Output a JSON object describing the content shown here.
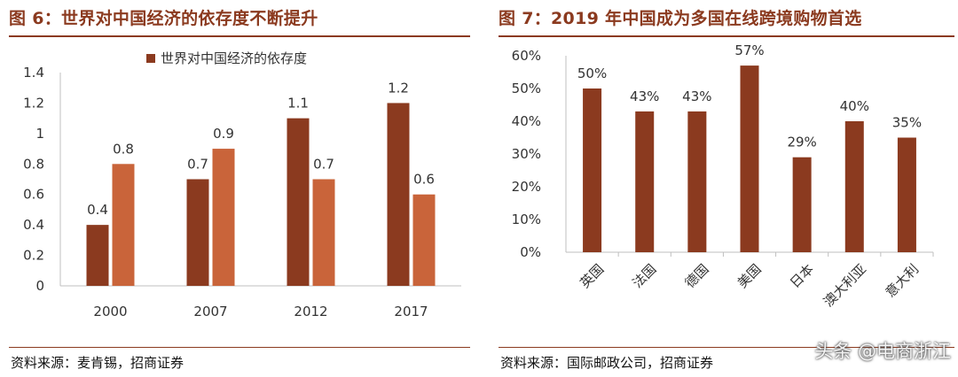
{
  "left": {
    "title": "图 6：世界对中国经济的依存度不断提升",
    "source": "资料来源：麦肯锡，招商证券"
  },
  "right": {
    "title": "图 7：2019 年中国成为多国在线跨境购物首选",
    "source": "资料来源：国际邮政公司，招商证券"
  },
  "watermark": "头条 @电商浙江",
  "colors": {
    "dark": "#8b3a1f",
    "light": "#c9643a",
    "axis": "#bfbfbf",
    "text": "#333333"
  },
  "chart_data": [
    {
      "type": "bar",
      "title": "",
      "categories": [
        "2000",
        "2007",
        "2012",
        "2017"
      ],
      "series": [
        {
          "name": "世界对中国经济的依存度",
          "values": [
            0.4,
            0.7,
            1.1,
            1.2
          ],
          "color": "#8b3a1f"
        },
        {
          "name": "",
          "values": [
            0.8,
            0.9,
            0.7,
            0.6
          ],
          "color": "#c9643a"
        }
      ],
      "yticks": [
        "0",
        "0.2",
        "0.4",
        "0.6",
        "0.8",
        "1",
        "1.2",
        "1.4"
      ],
      "ylim": [
        0,
        1.4
      ],
      "legend": "top",
      "grid": false
    },
    {
      "type": "bar",
      "title": "",
      "categories": [
        "英国",
        "法国",
        "德国",
        "美国",
        "日本",
        "澳大利亚",
        "意大利"
      ],
      "series": [
        {
          "name": "",
          "values": [
            50,
            43,
            43,
            57,
            29,
            40,
            35
          ],
          "color": "#8b3a1f"
        }
      ],
      "value_labels": [
        "50%",
        "43%",
        "43%",
        "57%",
        "29%",
        "40%",
        "35%"
      ],
      "yticks": [
        "0%",
        "10%",
        "20%",
        "30%",
        "40%",
        "50%",
        "60%"
      ],
      "ylim": [
        0,
        60
      ],
      "grid": false
    }
  ]
}
